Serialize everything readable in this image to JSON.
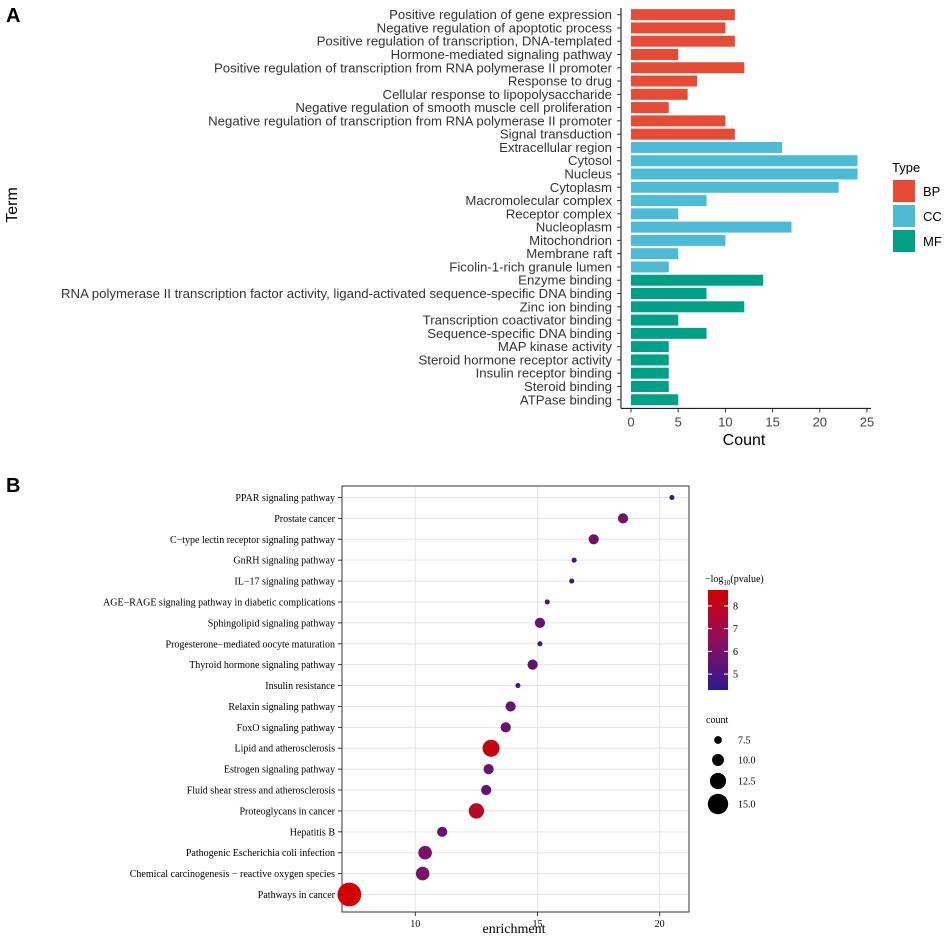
{
  "panel_labels": [
    "A",
    "B"
  ],
  "chart_data": [
    {
      "type": "bar",
      "orientation": "horizontal",
      "title": "",
      "xlabel": "Count",
      "ylabel": "Term",
      "xlim": [
        0,
        25
      ],
      "xticks": [
        0,
        5,
        10,
        15,
        20,
        25
      ],
      "grid": false,
      "legend": {
        "title": "Type",
        "position": "right",
        "entries": [
          {
            "label": "BP",
            "color": "#e64b35"
          },
          {
            "label": "CC",
            "color": "#4dbbd5"
          },
          {
            "label": "MF",
            "color": "#00a087"
          }
        ]
      },
      "categories": [
        "Positive regulation of gene expression",
        "Negative regulation of apoptotic process",
        "Positive regulation of transcription, DNA-templated",
        "Hormone-mediated signaling pathway",
        "Positive regulation of transcription from RNA polymerase II promoter",
        "Response to drug",
        "Cellular response to lipopolysaccharide",
        "Negative regulation of smooth muscle cell proliferation",
        "Negative regulation of transcription from RNA polymerase II promoter",
        "Signal transduction",
        "Extracellular region",
        "Cytosol",
        "Nucleus",
        "Cytoplasm",
        "Macromolecular complex",
        "Receptor complex",
        "Nucleoplasm",
        "Mitochondrion",
        "Membrane raft",
        "Ficolin-1-rich granule lumen",
        "Enzyme binding",
        "RNA polymerase II transcription factor activity, ligand-activated sequence-specific DNA binding",
        "Zinc ion binding",
        "Transcription coactivator binding",
        "Sequence-specific DNA binding",
        "MAP kinase activity",
        "Steroid hormone receptor activity",
        "Insulin receptor binding",
        "Steroid binding",
        "ATPase binding"
      ],
      "values": [
        11,
        10,
        11,
        5,
        12,
        7,
        6,
        4,
        10,
        11,
        16,
        24,
        24,
        22,
        8,
        5,
        17,
        10,
        5,
        4,
        14,
        8,
        12,
        5,
        8,
        4,
        4,
        4,
        4,
        5
      ],
      "types": [
        "BP",
        "BP",
        "BP",
        "BP",
        "BP",
        "BP",
        "BP",
        "BP",
        "BP",
        "BP",
        "CC",
        "CC",
        "CC",
        "CC",
        "CC",
        "CC",
        "CC",
        "CC",
        "CC",
        "CC",
        "MF",
        "MF",
        "MF",
        "MF",
        "MF",
        "MF",
        "MF",
        "MF",
        "MF",
        "MF"
      ]
    },
    {
      "type": "scatter",
      "subtype": "dot-plot",
      "title": "",
      "xlabel": "enrichment",
      "ylabel": "",
      "xlim": [
        7,
        21.2
      ],
      "xticks": [
        10,
        15,
        20
      ],
      "grid": true,
      "color_legend": {
        "title_prefix": "−log",
        "title_sub": "10",
        "title_suffix": "(pvalue)",
        "range": [
          4.3,
          8.7
        ],
        "ticks": [
          "8",
          "7",
          "6",
          "5"
        ],
        "tick_values": [
          8,
          7,
          6,
          5
        ],
        "low_color": "#2b1a8f",
        "high_color": "#d40000",
        "position": "right"
      },
      "size_legend": {
        "title": "count",
        "entries": [
          "7.5",
          "10.0",
          "12.5",
          "15.0"
        ],
        "entry_values": [
          7.5,
          10.0,
          12.5,
          15.0
        ],
        "position": "right"
      },
      "points": [
        {
          "term": "PPAR signaling pathway",
          "enrichment": 20.5,
          "log10p": 4.6,
          "count": 6
        },
        {
          "term": "Prostate cancer",
          "enrichment": 18.5,
          "log10p": 5.9,
          "count": 9
        },
        {
          "term": "C−type lectin receptor signaling pathway",
          "enrichment": 17.3,
          "log10p": 5.9,
          "count": 9
        },
        {
          "term": "GnRH signaling pathway",
          "enrichment": 16.5,
          "log10p": 4.7,
          "count": 6
        },
        {
          "term": "IL−17 signaling pathway",
          "enrichment": 16.4,
          "log10p": 4.7,
          "count": 6
        },
        {
          "term": "AGE−RAGE signaling pathway in diabetic complications",
          "enrichment": 15.4,
          "log10p": 4.8,
          "count": 6
        },
        {
          "term": "Sphingolipid signaling pathway",
          "enrichment": 15.1,
          "log10p": 5.6,
          "count": 9
        },
        {
          "term": "Progesterone−mediated oocyte maturation",
          "enrichment": 15.1,
          "log10p": 4.6,
          "count": 6
        },
        {
          "term": "Thyroid hormone signaling pathway",
          "enrichment": 14.8,
          "log10p": 5.5,
          "count": 9
        },
        {
          "term": "Insulin resistance",
          "enrichment": 14.2,
          "log10p": 4.6,
          "count": 6
        },
        {
          "term": "Relaxin signaling pathway",
          "enrichment": 13.9,
          "log10p": 5.6,
          "count": 9
        },
        {
          "term": "FoxO signaling pathway",
          "enrichment": 13.7,
          "log10p": 5.6,
          "count": 9
        },
        {
          "term": "Lipid and atherosclerosis",
          "enrichment": 13.1,
          "log10p": 8.2,
          "count": 13
        },
        {
          "term": "Estrogen signaling pathway",
          "enrichment": 13.0,
          "log10p": 5.7,
          "count": 9
        },
        {
          "term": "Fluid shear stress and atherosclerosis",
          "enrichment": 12.9,
          "log10p": 5.6,
          "count": 9
        },
        {
          "term": "Proteoglycans in cancer",
          "enrichment": 12.5,
          "log10p": 7.8,
          "count": 12
        },
        {
          "term": "Hepatitis B",
          "enrichment": 11.1,
          "log10p": 5.5,
          "count": 9
        },
        {
          "term": "Pathogenic Escherichia coli infection",
          "enrichment": 10.4,
          "log10p": 6.0,
          "count": 11
        },
        {
          "term": "Chemical carcinogenesis − reactive oxygen species",
          "enrichment": 10.3,
          "log10p": 6.1,
          "count": 11
        },
        {
          "term": "Pathways in cancer",
          "enrichment": 7.3,
          "log10p": 8.6,
          "count": 17
        }
      ]
    }
  ]
}
